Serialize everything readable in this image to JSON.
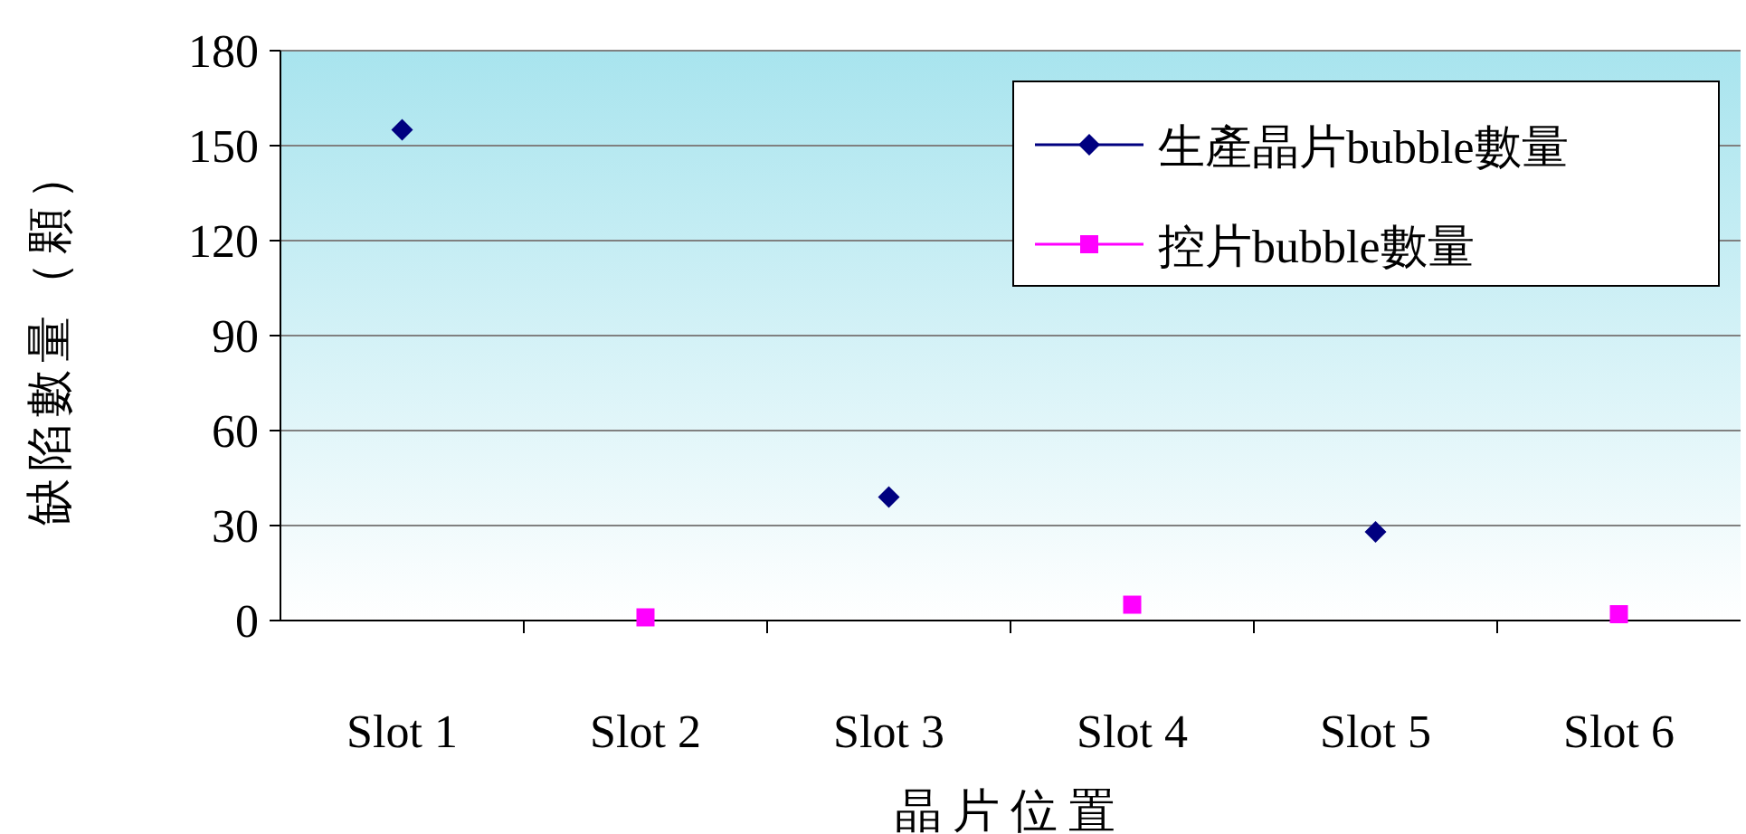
{
  "chart_data": {
    "type": "scatter",
    "xlabel": "晶片位置",
    "ylabel": "缺陷數量（顆）",
    "categories": [
      "Slot 1",
      "Slot 2",
      "Slot 3",
      "Slot 4",
      "Slot 5",
      "Slot 6"
    ],
    "series": [
      {
        "name": "生產晶片bubble數量",
        "color": "#000080",
        "marker": "diamond",
        "values": [
          155,
          null,
          39,
          null,
          28,
          null
        ]
      },
      {
        "name": "控片bubble數量",
        "color": "#ff00ff",
        "marker": "square",
        "values": [
          null,
          1,
          null,
          5,
          null,
          2
        ]
      }
    ],
    "ylim": [
      0,
      180
    ],
    "yticks": [
      0,
      30,
      60,
      90,
      120,
      150,
      180
    ],
    "grid": "y",
    "legend": "top right"
  }
}
